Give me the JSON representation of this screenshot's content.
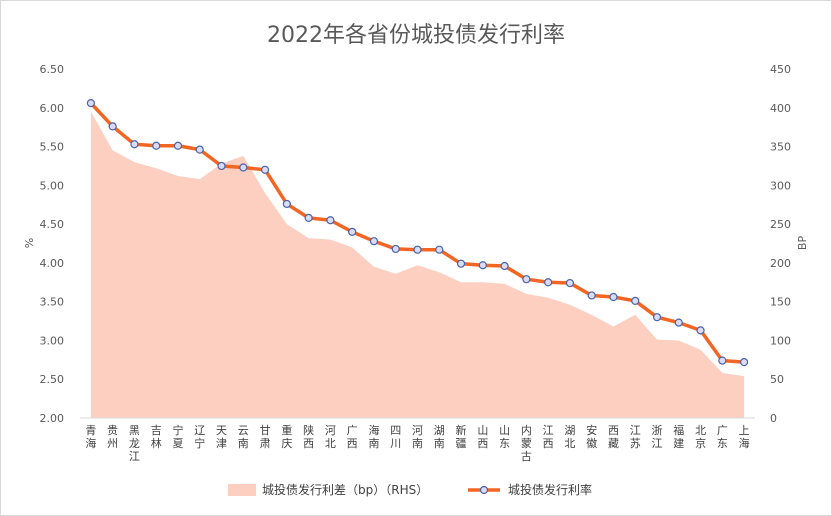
{
  "chart_data": {
    "type": "line",
    "title": "2022年各省份城投债发行利率",
    "categories": [
      "青海",
      "贵州",
      "黑龙江",
      "吉林",
      "宁夏",
      "辽宁",
      "天津",
      "云南",
      "甘肃",
      "重庆",
      "陕西",
      "河北",
      "广西",
      "海南",
      "四川",
      "河南",
      "湖南",
      "新疆",
      "山西",
      "山东",
      "内蒙古",
      "江西",
      "湖北",
      "安徽",
      "西藏",
      "江苏",
      "浙江",
      "福建",
      "北京",
      "广东",
      "上海"
    ],
    "y_left": {
      "label": "%",
      "min": 2.0,
      "max": 6.5,
      "step": 0.5,
      "ticks": [
        "2.00",
        "2.50",
        "3.00",
        "3.50",
        "4.00",
        "4.50",
        "5.00",
        "5.50",
        "6.00",
        "6.50"
      ]
    },
    "y_right": {
      "label": "BP",
      "min": 0,
      "max": 450,
      "step": 50,
      "ticks": [
        "0",
        "50",
        "100",
        "150",
        "200",
        "250",
        "300",
        "350",
        "400",
        "450"
      ]
    },
    "series": [
      {
        "name": "城投债发行利差（bp）（RHS）",
        "type": "area",
        "axis": "right",
        "color": "#FCCFC0",
        "values": [
          395,
          345,
          330,
          322,
          312,
          308,
          328,
          338,
          290,
          250,
          232,
          230,
          220,
          195,
          186,
          197,
          188,
          175,
          175,
          173,
          160,
          155,
          146,
          133,
          118,
          133,
          101,
          100,
          88,
          58,
          54
        ]
      },
      {
        "name": "城投债发行利率",
        "type": "line",
        "axis": "left",
        "color": "#F26522",
        "marker_fill": "#D9DCF2",
        "marker_stroke": "#4A63A8",
        "values": [
          6.06,
          5.76,
          5.53,
          5.51,
          5.51,
          5.46,
          5.25,
          5.23,
          5.2,
          4.76,
          4.58,
          4.55,
          4.4,
          4.28,
          4.18,
          4.17,
          4.17,
          3.99,
          3.97,
          3.96,
          3.79,
          3.75,
          3.74,
          3.58,
          3.56,
          3.51,
          3.3,
          3.23,
          3.13,
          2.74,
          2.72
        ]
      }
    ],
    "legend": {
      "position": "bottom"
    },
    "grid": false
  }
}
